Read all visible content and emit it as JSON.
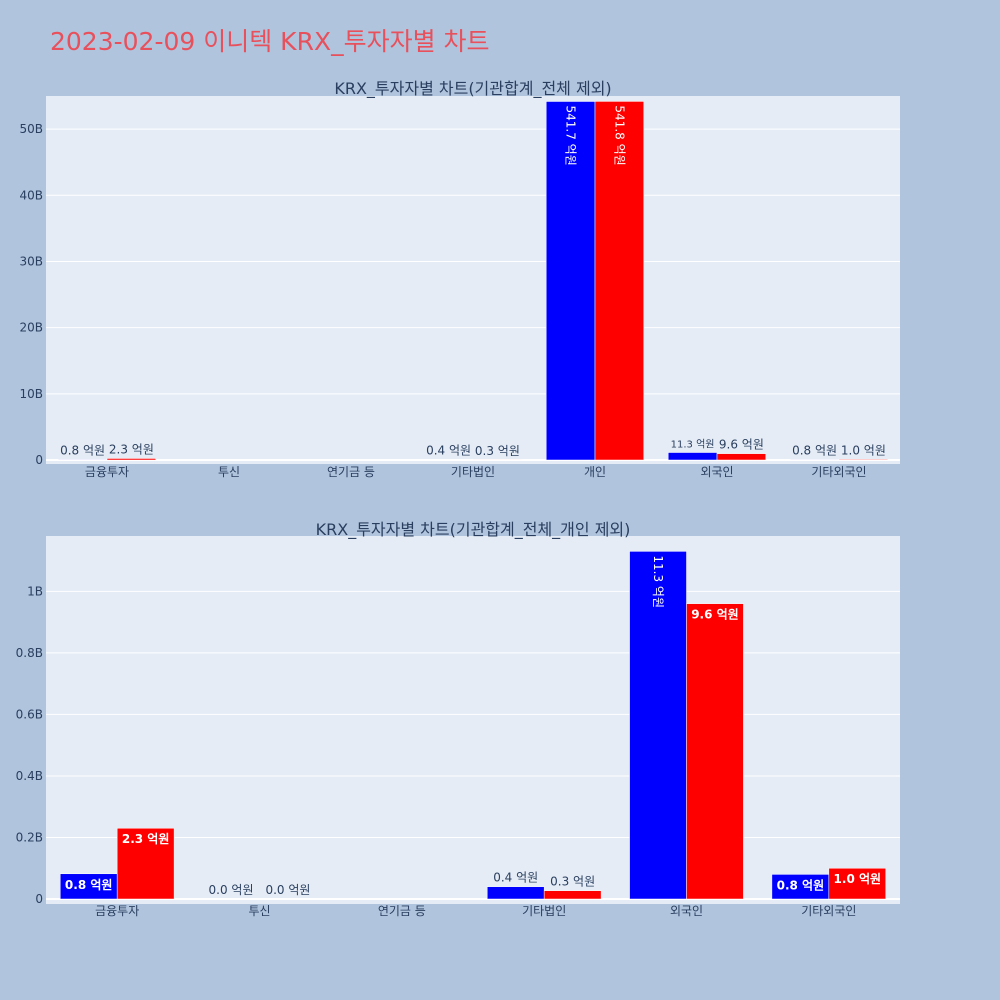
{
  "page_title": "2023-02-09 이니텍 KRX_투자자별 차트",
  "colors": {
    "background": "#b0c4de",
    "plot_bg": "#e5ecf6",
    "series_a": "#0000ff",
    "series_b": "#ff0000",
    "title": "#e8505b",
    "text": "#2a3f5f"
  },
  "chart_data": [
    {
      "type": "bar",
      "title": "KRX_투자자별 차트(기관합계_전체 제외)",
      "categories": [
        "금융투자",
        "투신",
        "연기금 등",
        "기타법인",
        "개인",
        "외국인",
        "기타외국인"
      ],
      "series": [
        {
          "values": [
            82000000,
            0,
            0,
            40000000,
            54170000000,
            1130000000,
            80000000
          ],
          "labels": [
            "0.8 억원",
            "",
            "",
            "0.4 억원",
            "541.7 억원",
            "11.3 억원",
            "0.8 억원"
          ],
          "label_modes": [
            "outside",
            "none",
            "none",
            "outside",
            "inside-vertical",
            "outside-small",
            "outside"
          ]
        },
        {
          "values": [
            230000000,
            0,
            0,
            27000000,
            54180000000,
            960000000,
            100000000
          ],
          "labels": [
            "2.3 억원",
            "",
            "",
            "0.3 억원",
            "541.8 억원",
            "9.6 억원",
            "1.0 억원"
          ],
          "label_modes": [
            "outside",
            "none",
            "none",
            "outside",
            "inside-vertical",
            "outside",
            "outside"
          ]
        }
      ],
      "ylim": [
        0,
        55000000000
      ],
      "yticks": [
        0,
        10000000000,
        20000000000,
        30000000000,
        40000000000,
        50000000000
      ],
      "ytick_labels": [
        "0",
        "10B",
        "20B",
        "30B",
        "40B",
        "50B"
      ],
      "grid": true
    },
    {
      "type": "bar",
      "title": "KRX_투자자별 차트(기관합계_전체_개인 제외)",
      "categories": [
        "금융투자",
        "투신",
        "연기금 등",
        "기타법인",
        "외국인",
        "기타외국인"
      ],
      "series": [
        {
          "values": [
            82000000,
            0,
            0,
            40000000,
            1130000000,
            80000000
          ],
          "labels": [
            "0.8 억원",
            "0.0 억원",
            "",
            "0.4 억원",
            "11.3 억원",
            "0.8 억원"
          ],
          "label_modes": [
            "inside-bold",
            "outside",
            "none",
            "outside",
            "inside-vertical",
            "inside-bold"
          ]
        },
        {
          "values": [
            230000000,
            0,
            0,
            27000000,
            960000000,
            100000000
          ],
          "labels": [
            "2.3 억원",
            "0.0 억원",
            "",
            "0.3 억원",
            "9.6 억원",
            "1.0 억원"
          ],
          "label_modes": [
            "inside-bold",
            "outside",
            "none",
            "outside",
            "inside-bold",
            "inside-bold"
          ]
        }
      ],
      "ylim": [
        0,
        1180000000
      ],
      "yticks": [
        0,
        200000000,
        400000000,
        600000000,
        800000000,
        1000000000
      ],
      "ytick_labels": [
        "0",
        "0.2B",
        "0.4B",
        "0.6B",
        "0.8B",
        "1B"
      ],
      "grid": true
    }
  ]
}
